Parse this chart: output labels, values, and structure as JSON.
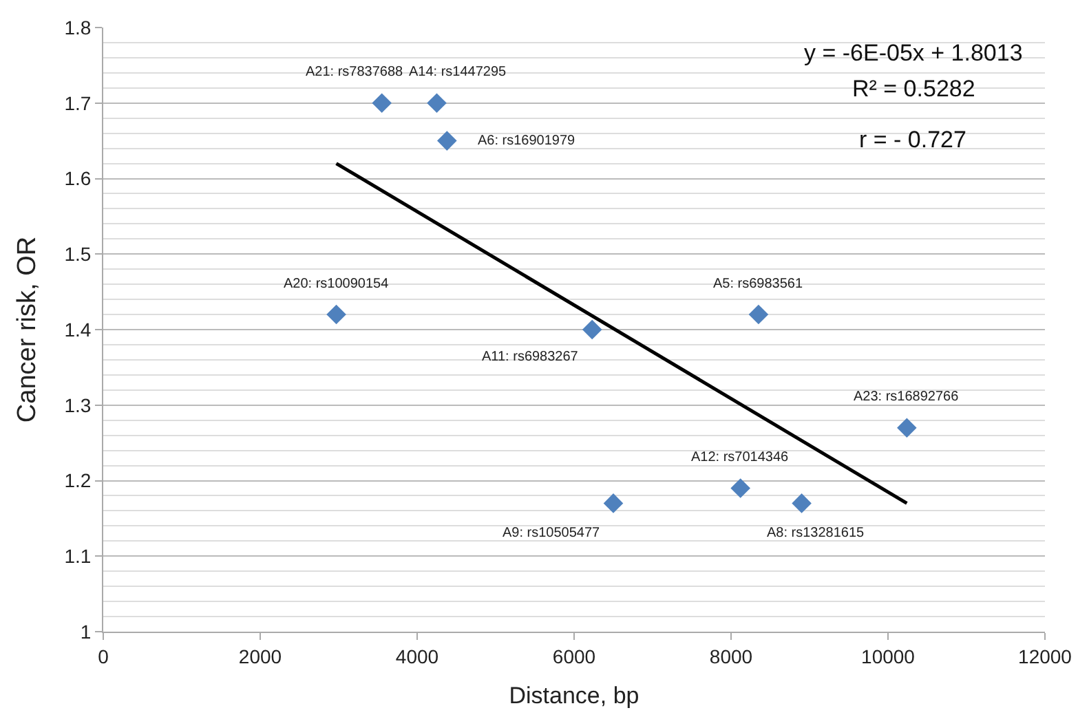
{
  "chart_data": {
    "type": "scatter",
    "xlabel": "Distance, bp",
    "ylabel": "Cancer risk, OR",
    "series": [
      {
        "color": "#4f81bd",
        "marker": "diamond",
        "x": [
          3550,
          4250,
          4380,
          2970,
          6230,
          8350,
          10240,
          8120,
          6500,
          8900
        ],
        "values": [
          1.7,
          1.7,
          1.65,
          1.42,
          1.4,
          1.42,
          1.27,
          1.19,
          1.17,
          1.17
        ]
      },
      {
        "type": "line",
        "color": "#000000",
        "marker": "none",
        "line_style": "solid",
        "x": [
          2970,
          10240
        ],
        "values": [
          1.62,
          1.17
        ]
      }
    ],
    "annotations": [
      {
        "text": "A21: rs7837688",
        "x": 3550,
        "y": 1.7
      },
      {
        "text": "A14: rs1447295",
        "x": 4250,
        "y": 1.7
      },
      {
        "text": "A6: rs16901979",
        "x": 4380,
        "y": 1.65
      },
      {
        "text": "A20: rs10090154",
        "x": 2970,
        "y": 1.42
      },
      {
        "text": "A11: rs6983267",
        "x": 6230,
        "y": 1.4
      },
      {
        "text": "A5: rs6983561",
        "x": 8350,
        "y": 1.42
      },
      {
        "text": "A23: rs16892766",
        "x": 10240,
        "y": 1.27
      },
      {
        "text": "A12: rs7014346",
        "x": 8120,
        "y": 1.19
      },
      {
        "text": "A9: rs10505477",
        "x": 6500,
        "y": 1.17
      },
      {
        "text": "A8: rs13281615",
        "x": 8900,
        "y": 1.17
      },
      "y = -6E-05x + 1.8013",
      "R² = 0.5282",
      "r = - 0.727"
    ],
    "xlim": [
      0,
      12000
    ],
    "xticks": [
      0,
      2000,
      4000,
      6000,
      8000,
      10000,
      12000
    ],
    "ylim": [
      1,
      1.8
    ],
    "yticks": [
      1,
      1.1,
      1.2,
      1.3,
      1.4,
      1.5,
      1.6,
      1.7,
      1.8
    ],
    "grid": "y"
  }
}
